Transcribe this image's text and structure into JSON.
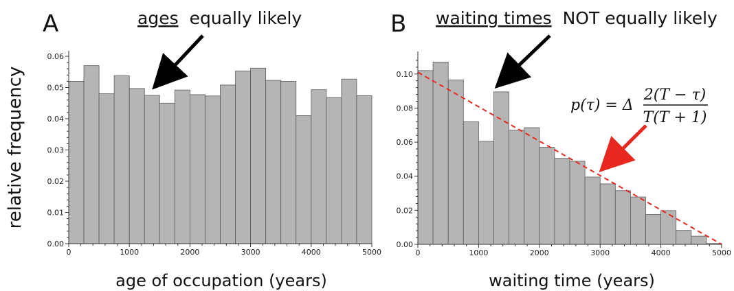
{
  "shared_ylabel": "relative frequency",
  "colors": {
    "bar_fill": "#b5b5b5",
    "bar_stroke": "#5a5a5a",
    "fit_line": "#e8281e",
    "arrow_black": "#000000",
    "arrow_red": "#e8281e"
  },
  "chart_data": [
    {
      "type": "bar",
      "panel_label": "A",
      "annotation_underlined": "ages",
      "annotation_rest": "equally likely",
      "xlabel": "age of occupation (years)",
      "ylabel": "relative frequency",
      "xlim": [
        0,
        5000
      ],
      "ylim": [
        0,
        0.06
      ],
      "bin_width": 250,
      "x_ticks": [
        0,
        1000,
        2000,
        3000,
        4000,
        5000
      ],
      "x_tick_labels": [
        "0",
        "1000",
        "2000",
        "3000",
        "4000",
        "5000"
      ],
      "y_ticks": [
        0,
        0.01,
        0.02,
        0.03,
        0.04,
        0.05,
        0.06
      ],
      "y_tick_labels": [
        "0.00",
        "0.01",
        "0.02",
        "0.03",
        "0.04",
        "0.05",
        "0.06"
      ],
      "bin_starts": [
        0,
        250,
        500,
        750,
        1000,
        1250,
        1500,
        1750,
        2000,
        2250,
        2500,
        2750,
        3000,
        3250,
        3500,
        3750,
        4000,
        4250,
        4500,
        4750
      ],
      "values": [
        0.052,
        0.057,
        0.048,
        0.0538,
        0.0497,
        0.0475,
        0.045,
        0.0492,
        0.0477,
        0.0473,
        0.0508,
        0.0553,
        0.0562,
        0.0523,
        0.052,
        0.041,
        0.0493,
        0.0468,
        0.0527,
        0.0474
      ],
      "arrow_tip": {
        "x": 1500,
        "y": 0.052
      }
    },
    {
      "type": "bar",
      "panel_label": "B",
      "annotation_underlined": "waiting times",
      "annotation_rest": "NOT equally likely",
      "xlabel": "waiting time (years)",
      "ylabel": "relative frequency",
      "xlim": [
        0,
        5000
      ],
      "ylim": [
        0,
        0.11
      ],
      "bin_width": 250,
      "x_ticks": [
        0,
        1000,
        2000,
        3000,
        4000,
        5000
      ],
      "x_tick_labels": [
        "0",
        "1000",
        "2000",
        "3000",
        "4000",
        "5000"
      ],
      "y_ticks": [
        0,
        0.02,
        0.04,
        0.06,
        0.08,
        0.1
      ],
      "y_tick_labels": [
        "0.00",
        "0.02",
        "0.04",
        "0.06",
        "0.08",
        "0.10"
      ],
      "bin_starts": [
        0,
        250,
        500,
        750,
        1000,
        1250,
        1500,
        1750,
        2000,
        2250,
        2500,
        2750,
        3000,
        3250,
        3500,
        3750,
        4000,
        4250,
        4500,
        4750
      ],
      "values": [
        0.102,
        0.107,
        0.0965,
        0.072,
        0.0605,
        0.0895,
        0.067,
        0.0685,
        0.057,
        0.0505,
        0.0488,
        0.0395,
        0.0355,
        0.0315,
        0.0278,
        0.0175,
        0.0198,
        0.0082,
        0.0048,
        0.0005
      ],
      "fit_line": {
        "x": [
          0,
          5000
        ],
        "y": [
          0.101,
          0
        ]
      },
      "formula": "p(τ) = Δ 2(T − τ) / T(T + 1)",
      "formula_parts": {
        "lhs": "p(τ) = Δ",
        "numerator": "2(T − τ)",
        "denominator": "T(T + 1)"
      },
      "arrow_tip": {
        "x": 1400,
        "y": 0.096
      },
      "red_arrow_tip": {
        "x": 3250,
        "y": 0.047
      }
    }
  ]
}
